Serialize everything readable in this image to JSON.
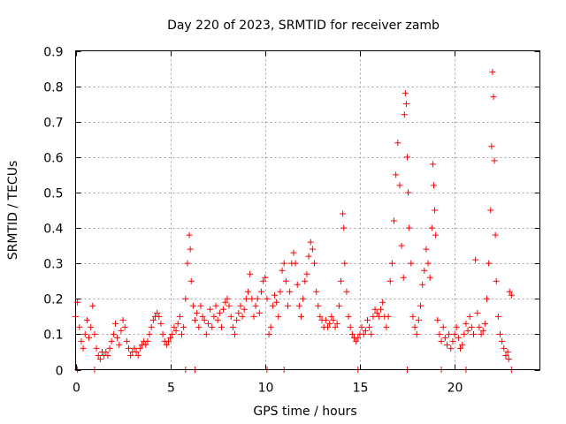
{
  "chart_data": {
    "type": "scatter",
    "title": "Day 220 of 2023, SRMTID for receiver zamb",
    "xlabel": "GPS time / hours",
    "ylabel": "SRMTID / TECUs",
    "xlim": [
      0,
      24.5
    ],
    "ylim": [
      0,
      0.9
    ],
    "x_ticks": [
      0,
      5,
      10,
      15,
      20
    ],
    "y_ticks": [
      0,
      0.1,
      0.2,
      0.3,
      0.4,
      0.5,
      0.6,
      0.7,
      0.8,
      0.9
    ],
    "x_tick_labels": [
      "0",
      "5",
      "10",
      "15",
      "20"
    ],
    "y_tick_labels": [
      "0",
      "0.1",
      "0.2",
      "0.3",
      "0.4",
      "0.5",
      "0.6",
      "0.7",
      "0.8",
      "0.9"
    ],
    "grid": true,
    "marker": "+",
    "color": "#ff0000",
    "series": [
      {
        "name": "SRMTID",
        "points": [
          [
            0.0,
            0.15
          ],
          [
            0.1,
            0.19
          ],
          [
            0.2,
            0.12
          ],
          [
            0.3,
            0.08
          ],
          [
            0.4,
            0.06
          ],
          [
            0.5,
            0.1
          ],
          [
            0.6,
            0.14
          ],
          [
            0.7,
            0.09
          ],
          [
            0.8,
            0.12
          ],
          [
            0.9,
            0.18
          ],
          [
            1.0,
            0.1
          ],
          [
            1.1,
            0.06
          ],
          [
            1.2,
            0.04
          ],
          [
            1.3,
            0.03
          ],
          [
            1.4,
            0.05
          ],
          [
            1.5,
            0.04
          ],
          [
            1.6,
            0.05
          ],
          [
            1.7,
            0.04
          ],
          [
            1.8,
            0.06
          ],
          [
            1.9,
            0.08
          ],
          [
            2.0,
            0.1
          ],
          [
            2.1,
            0.13
          ],
          [
            2.2,
            0.09
          ],
          [
            2.3,
            0.07
          ],
          [
            2.4,
            0.11
          ],
          [
            2.5,
            0.14
          ],
          [
            2.6,
            0.12
          ],
          [
            2.7,
            0.08
          ],
          [
            2.8,
            0.06
          ],
          [
            2.9,
            0.04
          ],
          [
            3.0,
            0.05
          ],
          [
            3.1,
            0.06
          ],
          [
            3.2,
            0.05
          ],
          [
            3.3,
            0.04
          ],
          [
            3.4,
            0.06
          ],
          [
            3.5,
            0.07
          ],
          [
            3.6,
            0.08
          ],
          [
            3.7,
            0.07
          ],
          [
            3.8,
            0.08
          ],
          [
            3.9,
            0.1
          ],
          [
            4.0,
            0.12
          ],
          [
            4.1,
            0.14
          ],
          [
            4.2,
            0.15
          ],
          [
            4.3,
            0.16
          ],
          [
            4.4,
            0.15
          ],
          [
            4.5,
            0.13
          ],
          [
            4.6,
            0.1
          ],
          [
            4.7,
            0.08
          ],
          [
            4.8,
            0.07
          ],
          [
            4.9,
            0.08
          ],
          [
            5.0,
            0.09
          ],
          [
            5.1,
            0.1
          ],
          [
            5.2,
            0.12
          ],
          [
            5.3,
            0.11
          ],
          [
            5.4,
            0.13
          ],
          [
            5.5,
            0.15
          ],
          [
            5.6,
            0.1
          ],
          [
            5.7,
            0.12
          ],
          [
            5.8,
            0.2
          ],
          [
            5.9,
            0.3
          ],
          [
            6.0,
            0.38
          ],
          [
            6.05,
            0.34
          ],
          [
            6.1,
            0.25
          ],
          [
            6.2,
            0.18
          ],
          [
            6.3,
            0.14
          ],
          [
            6.4,
            0.16
          ],
          [
            6.5,
            0.12
          ],
          [
            6.6,
            0.18
          ],
          [
            6.7,
            0.15
          ],
          [
            6.8,
            0.14
          ],
          [
            6.9,
            0.1
          ],
          [
            7.0,
            0.13
          ],
          [
            7.1,
            0.17
          ],
          [
            7.2,
            0.12
          ],
          [
            7.3,
            0.15
          ],
          [
            7.4,
            0.18
          ],
          [
            7.5,
            0.14
          ],
          [
            7.6,
            0.16
          ],
          [
            7.7,
            0.12
          ],
          [
            7.8,
            0.17
          ],
          [
            7.9,
            0.19
          ],
          [
            8.0,
            0.2
          ],
          [
            8.1,
            0.18
          ],
          [
            8.2,
            0.15
          ],
          [
            8.3,
            0.12
          ],
          [
            8.4,
            0.1
          ],
          [
            8.5,
            0.14
          ],
          [
            8.6,
            0.16
          ],
          [
            8.7,
            0.18
          ],
          [
            8.8,
            0.15
          ],
          [
            8.9,
            0.17
          ],
          [
            9.0,
            0.2
          ],
          [
            9.1,
            0.22
          ],
          [
            9.2,
            0.27
          ],
          [
            9.3,
            0.2
          ],
          [
            9.4,
            0.15
          ],
          [
            9.5,
            0.18
          ],
          [
            9.6,
            0.2
          ],
          [
            9.7,
            0.16
          ],
          [
            9.8,
            0.22
          ],
          [
            9.9,
            0.25
          ],
          [
            10.0,
            0.26
          ],
          [
            10.1,
            0.2
          ],
          [
            10.2,
            0.1
          ],
          [
            10.3,
            0.12
          ],
          [
            10.4,
            0.18
          ],
          [
            10.5,
            0.21
          ],
          [
            10.6,
            0.19
          ],
          [
            10.7,
            0.15
          ],
          [
            10.8,
            0.22
          ],
          [
            10.9,
            0.28
          ],
          [
            11.0,
            0.3
          ],
          [
            11.1,
            0.25
          ],
          [
            11.2,
            0.18
          ],
          [
            11.3,
            0.22
          ],
          [
            11.4,
            0.3
          ],
          [
            11.5,
            0.33
          ],
          [
            11.6,
            0.3
          ],
          [
            11.7,
            0.24
          ],
          [
            11.8,
            0.18
          ],
          [
            11.9,
            0.15
          ],
          [
            12.0,
            0.2
          ],
          [
            12.1,
            0.25
          ],
          [
            12.2,
            0.27
          ],
          [
            12.3,
            0.32
          ],
          [
            12.4,
            0.36
          ],
          [
            12.5,
            0.34
          ],
          [
            12.6,
            0.3
          ],
          [
            12.7,
            0.22
          ],
          [
            12.8,
            0.18
          ],
          [
            12.9,
            0.15
          ],
          [
            13.0,
            0.14
          ],
          [
            13.1,
            0.12
          ],
          [
            13.2,
            0.14
          ],
          [
            13.3,
            0.12
          ],
          [
            13.4,
            0.13
          ],
          [
            13.5,
            0.15
          ],
          [
            13.6,
            0.14
          ],
          [
            13.7,
            0.12
          ],
          [
            13.8,
            0.13
          ],
          [
            13.9,
            0.18
          ],
          [
            14.0,
            0.25
          ],
          [
            14.1,
            0.44
          ],
          [
            14.15,
            0.4
          ],
          [
            14.2,
            0.3
          ],
          [
            14.3,
            0.22
          ],
          [
            14.4,
            0.15
          ],
          [
            14.5,
            0.12
          ],
          [
            14.6,
            0.1
          ],
          [
            14.7,
            0.09
          ],
          [
            14.8,
            0.08
          ],
          [
            14.9,
            0.09
          ],
          [
            15.0,
            0.1
          ],
          [
            15.1,
            0.12
          ],
          [
            15.2,
            0.1
          ],
          [
            15.3,
            0.11
          ],
          [
            15.4,
            0.14
          ],
          [
            15.5,
            0.12
          ],
          [
            15.6,
            0.1
          ],
          [
            15.7,
            0.15
          ],
          [
            15.8,
            0.17
          ],
          [
            15.9,
            0.16
          ],
          [
            16.0,
            0.15
          ],
          [
            16.1,
            0.17
          ],
          [
            16.2,
            0.19
          ],
          [
            16.3,
            0.15
          ],
          [
            16.4,
            0.12
          ],
          [
            16.5,
            0.15
          ],
          [
            16.6,
            0.25
          ],
          [
            16.7,
            0.3
          ],
          [
            16.8,
            0.42
          ],
          [
            16.9,
            0.55
          ],
          [
            17.0,
            0.64
          ],
          [
            17.1,
            0.52
          ],
          [
            17.2,
            0.35
          ],
          [
            17.3,
            0.26
          ],
          [
            17.35,
            0.72
          ],
          [
            17.4,
            0.78
          ],
          [
            17.45,
            0.75
          ],
          [
            17.5,
            0.6
          ],
          [
            17.55,
            0.5
          ],
          [
            17.6,
            0.4
          ],
          [
            17.7,
            0.3
          ],
          [
            17.8,
            0.15
          ],
          [
            17.9,
            0.12
          ],
          [
            18.0,
            0.1
          ],
          [
            18.1,
            0.14
          ],
          [
            18.2,
            0.18
          ],
          [
            18.3,
            0.24
          ],
          [
            18.4,
            0.28
          ],
          [
            18.5,
            0.34
          ],
          [
            18.6,
            0.3
          ],
          [
            18.7,
            0.26
          ],
          [
            18.8,
            0.4
          ],
          [
            18.85,
            0.58
          ],
          [
            18.9,
            0.52
          ],
          [
            18.95,
            0.45
          ],
          [
            19.0,
            0.38
          ],
          [
            19.1,
            0.14
          ],
          [
            19.2,
            0.1
          ],
          [
            19.3,
            0.08
          ],
          [
            19.4,
            0.12
          ],
          [
            19.5,
            0.09
          ],
          [
            19.6,
            0.07
          ],
          [
            19.7,
            0.1
          ],
          [
            19.8,
            0.06
          ],
          [
            19.9,
            0.08
          ],
          [
            20.0,
            0.1
          ],
          [
            20.1,
            0.12
          ],
          [
            20.2,
            0.09
          ],
          [
            20.3,
            0.06
          ],
          [
            20.4,
            0.07
          ],
          [
            20.5,
            0.1
          ],
          [
            20.6,
            0.13
          ],
          [
            20.7,
            0.11
          ],
          [
            20.8,
            0.15
          ],
          [
            20.9,
            0.12
          ],
          [
            21.0,
            0.1
          ],
          [
            21.1,
            0.31
          ],
          [
            21.2,
            0.16
          ],
          [
            21.3,
            0.12
          ],
          [
            21.4,
            0.1
          ],
          [
            21.5,
            0.11
          ],
          [
            21.6,
            0.13
          ],
          [
            21.7,
            0.2
          ],
          [
            21.8,
            0.3
          ],
          [
            21.9,
            0.45
          ],
          [
            21.95,
            0.63
          ],
          [
            22.0,
            0.84
          ],
          [
            22.05,
            0.77
          ],
          [
            22.1,
            0.59
          ],
          [
            22.15,
            0.38
          ],
          [
            22.2,
            0.25
          ],
          [
            22.3,
            0.15
          ],
          [
            22.4,
            0.1
          ],
          [
            22.5,
            0.08
          ],
          [
            22.6,
            0.06
          ],
          [
            22.7,
            0.04
          ],
          [
            22.8,
            0.05
          ],
          [
            22.9,
            0.22
          ],
          [
            23.0,
            0.21
          ],
          [
            22.85,
            0.03
          ],
          [
            0.1,
            0.0
          ],
          [
            1.0,
            0.0
          ],
          [
            5.8,
            0.0
          ],
          [
            6.3,
            0.0
          ],
          [
            10.1,
            0.0
          ],
          [
            11.0,
            0.0
          ],
          [
            14.9,
            0.0
          ],
          [
            17.5,
            0.0
          ],
          [
            19.3,
            0.0
          ],
          [
            20.6,
            0.0
          ],
          [
            23.0,
            0.0
          ]
        ]
      }
    ]
  }
}
